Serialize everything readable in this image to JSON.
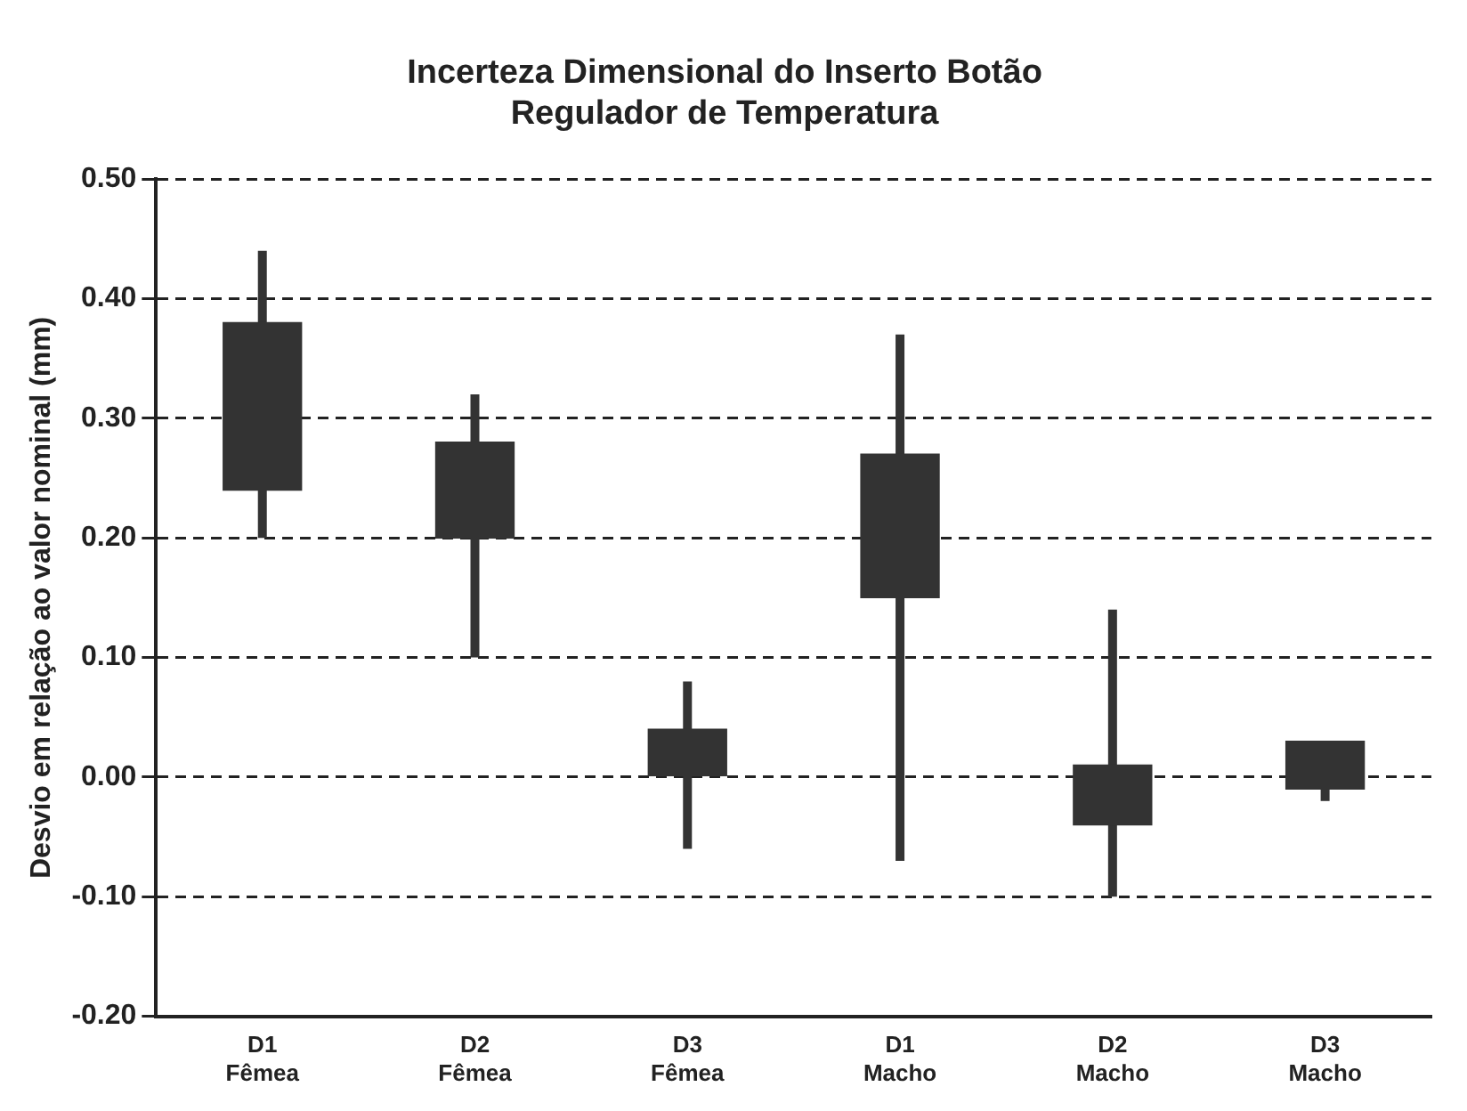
{
  "chart_data": {
    "type": "candlestick",
    "title": "Incerteza Dimensional do Inserto Botão\nRegulador de Temperatura",
    "ylabel": "Desvio em relação ao valor nominal (mm)",
    "categories": [
      "D1\nFêmea",
      "D2\nFêmea",
      "D3\nFêmea",
      "D1\nMacho",
      "D2\nMacho",
      "D3\nMacho"
    ],
    "ohlc": [
      [
        0.38,
        0.44,
        0.2,
        0.24
      ],
      [
        0.28,
        0.32,
        0.1,
        0.2
      ],
      [
        0.04,
        0.08,
        -0.06,
        0.0
      ],
      [
        0.27,
        0.37,
        -0.07,
        0.15
      ],
      [
        0.01,
        0.14,
        -0.1,
        -0.04
      ],
      [
        0.03,
        0.03,
        -0.02,
        -0.01
      ]
    ],
    "color": "#333333",
    "ylim": [
      -0.2,
      0.5
    ],
    "yticks": [
      {
        "value": -0.2,
        "label": "-0.20"
      },
      {
        "value": -0.1,
        "label": "-0.10"
      },
      {
        "value": 0,
        "label": "0.00"
      },
      {
        "value": 0.1,
        "label": "0.10"
      },
      {
        "value": 0.2,
        "label": "0.20"
      },
      {
        "value": 0.3,
        "label": "0.30"
      },
      {
        "value": 0.4,
        "label": "0.40"
      },
      {
        "value": 0.5,
        "label": "0.50"
      }
    ],
    "grid": "y"
  }
}
